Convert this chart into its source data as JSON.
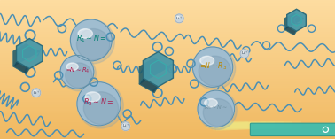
{
  "bg_top": "#FDDCA0",
  "bg_bottom": "#F0B860",
  "sphere_color": "#A0BDD0",
  "sphere_highlight": "#C8DDE8",
  "sphere_shadow": "#7899B0",
  "sphere_edge": "#6090A8",
  "small_sphere_color": "#C8D4DC",
  "small_sphere_edge": "#9AAABB",
  "wave_color": "#4A8FB5",
  "wave_lw": 1.1,
  "hex_outer_color": "#2A6878",
  "hex_inner_color": "#3AACAC",
  "hex_face_color": "#4898A8",
  "hex_dark_color": "#1A4858",
  "electrode_color": "#3ABCB0",
  "electrode_edge": "#289890",
  "ring_color": "#4A8FB5",
  "text_teal": "#008070",
  "text_crimson": "#AA2050",
  "text_orange": "#BB8800",
  "text_gray": "#7090A0",
  "li_color": "#607080",
  "figsize": [
    3.78,
    1.57
  ],
  "dpi": 100,
  "xlim": [
    0,
    10
  ],
  "ylim": [
    0,
    4.15
  ]
}
